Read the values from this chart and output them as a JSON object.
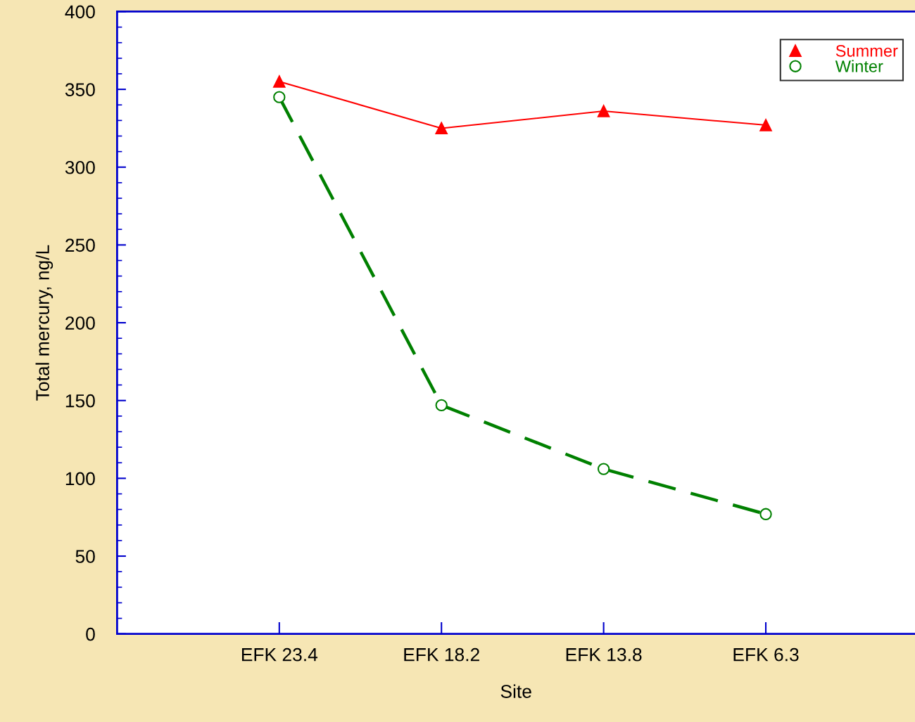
{
  "chart_data": {
    "type": "line",
    "xlabel": "Site",
    "ylabel": "Total mercury, ng/L",
    "categories": [
      "EFK 23.4",
      "EFK 18.2",
      "EFK 13.8",
      "EFK 6.3"
    ],
    "series": [
      {
        "name": "Summer",
        "color": "#ff0000",
        "values": [
          355,
          325,
          336,
          327
        ],
        "marker": "triangle",
        "line_style": "solid"
      },
      {
        "name": "Winter",
        "color": "#008000",
        "values": [
          345,
          147,
          106,
          77
        ],
        "marker": "circle",
        "line_style": "dashed"
      }
    ],
    "ylim": [
      0,
      400
    ],
    "yticks": [
      0,
      50,
      100,
      150,
      200,
      250,
      300,
      350,
      400
    ],
    "grid": false,
    "legend": "top right"
  }
}
